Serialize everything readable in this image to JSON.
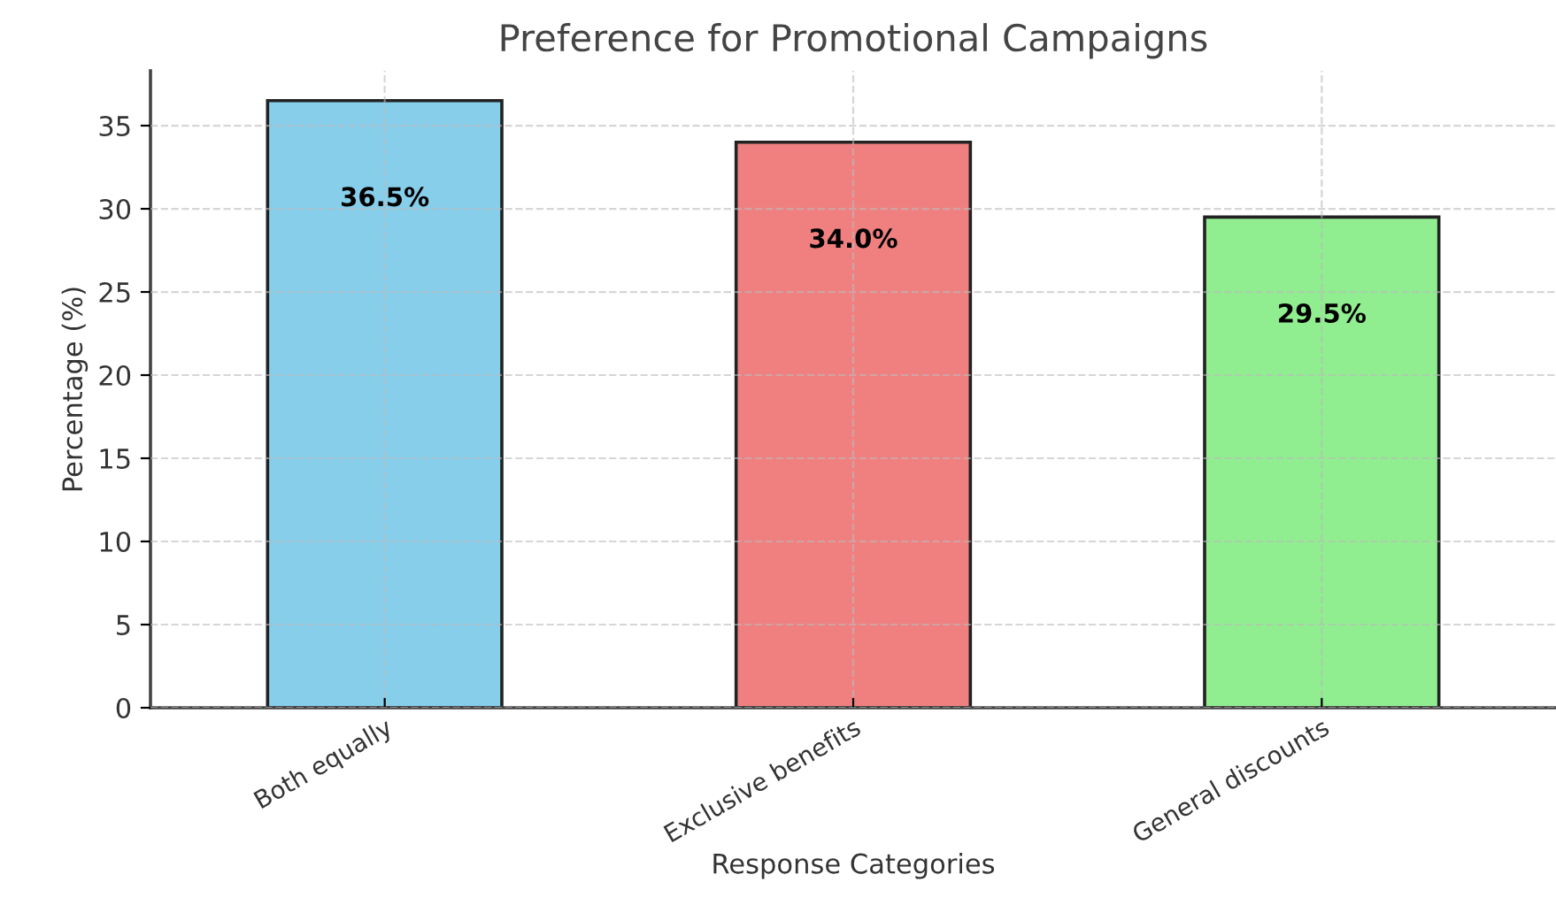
{
  "chart_data": {
    "type": "bar",
    "title": "Preference for Promotional Campaigns",
    "xlabel": "Response Categories",
    "ylabel": "Percentage (%)",
    "categories": [
      "Both equally",
      "Exclusive benefits",
      "General discounts"
    ],
    "values": [
      36.5,
      34.0,
      29.5
    ],
    "colors": [
      "#87ceeb",
      "#f08080",
      "#90ee90"
    ],
    "value_labels": [
      "36.5%",
      "34.0%",
      "29.5%"
    ],
    "ylim": [
      0,
      38.3
    ],
    "yticks": [
      0,
      5,
      10,
      15,
      20,
      25,
      30,
      35
    ],
    "grid": true
  }
}
